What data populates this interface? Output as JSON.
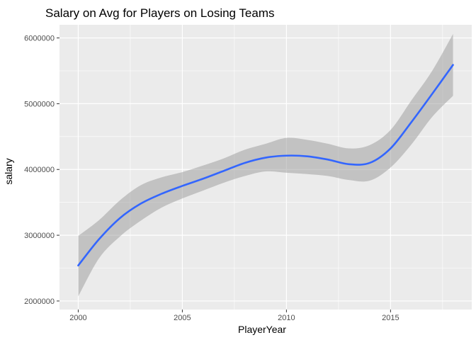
{
  "chart_data": {
    "type": "line",
    "title": "Salary on Avg for Players on Losing Teams",
    "xlabel": "PlayerYear",
    "ylabel": "salary",
    "xlim": [
      1999.1,
      2018.9
    ],
    "ylim": [
      1870000,
      6200000
    ],
    "x_ticks": [
      2000,
      2005,
      2010,
      2015
    ],
    "x_tick_labels": [
      "2000",
      "2005",
      "2010",
      "2015"
    ],
    "y_ticks": [
      2000000,
      3000000,
      4000000,
      5000000,
      6000000
    ],
    "y_tick_labels": [
      "2000000",
      "3000000",
      "4000000",
      "5000000",
      "6000000"
    ],
    "grid": true,
    "series": [
      {
        "type": "smooth",
        "x": [
          2000,
          2001,
          2002,
          2003,
          2004,
          2005,
          2006,
          2007,
          2008,
          2009,
          2010,
          2011,
          2012,
          2013,
          2014,
          2015,
          2016,
          2017,
          2018
        ],
        "values": [
          2540000,
          2940000,
          3260000,
          3480000,
          3630000,
          3750000,
          3860000,
          3980000,
          4100000,
          4180000,
          4210000,
          4200000,
          4150000,
          4080000,
          4100000,
          4320000,
          4720000,
          5150000,
          5590000
        ],
        "lower": [
          2070000,
          2650000,
          2980000,
          3220000,
          3420000,
          3560000,
          3680000,
          3800000,
          3900000,
          3970000,
          3950000,
          3930000,
          3900000,
          3840000,
          3830000,
          4030000,
          4380000,
          4800000,
          5120000
        ],
        "upper": [
          2990000,
          3230000,
          3530000,
          3760000,
          3880000,
          3960000,
          4060000,
          4170000,
          4300000,
          4390000,
          4480000,
          4450000,
          4390000,
          4320000,
          4370000,
          4600000,
          5050000,
          5500000,
          6060000
        ],
        "color": "#3366ff",
        "band_color": "#999999"
      }
    ]
  },
  "colors": {
    "panel_background": "#ebebeb",
    "grid_major": "#ffffff",
    "tick_color": "#333333"
  }
}
